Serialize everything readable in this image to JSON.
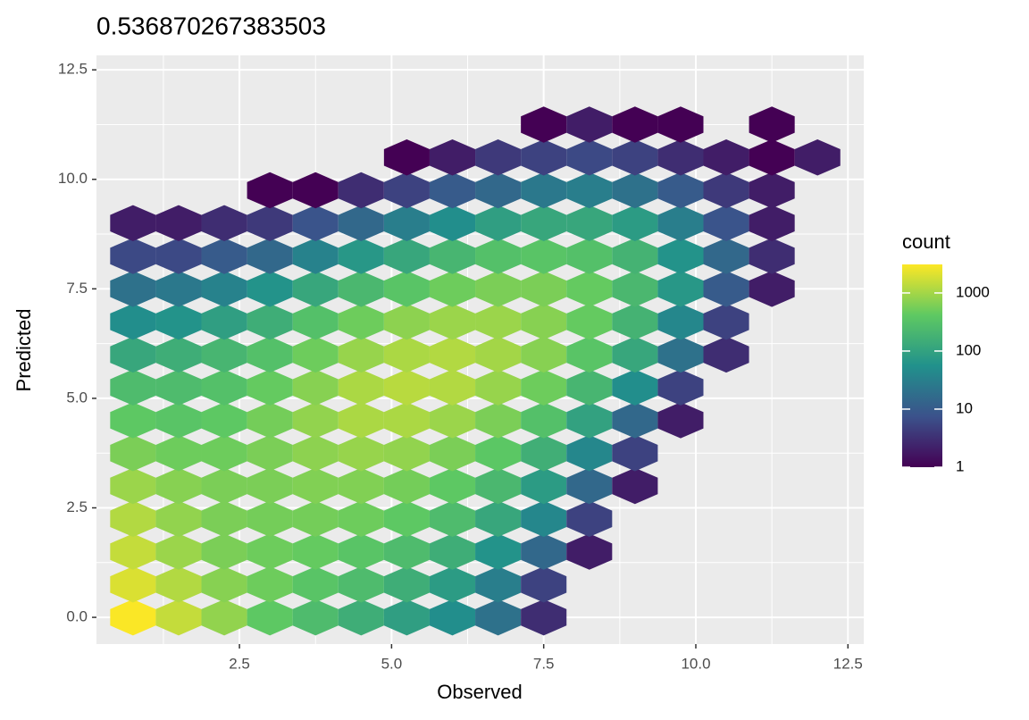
{
  "chart_data": {
    "type": "hexbin",
    "title": "0.536870267383503",
    "x_label": "Observed",
    "y_label": "Predicted",
    "legend_title": "count",
    "x": [
      0.75,
      1.5,
      2.25,
      3.0,
      3.75,
      4.5,
      5.25,
      6.0,
      6.75,
      7.5,
      8.25,
      9.0,
      9.75,
      10.5,
      11.25,
      12.0
    ],
    "y": [
      0,
      0.75,
      1.5,
      2.25,
      3.0,
      3.75,
      4.5,
      5.25,
      6.0,
      6.75,
      7.5,
      8.25,
      9.0,
      9.75,
      10.5,
      11.25
    ],
    "values": [
      [
        3000,
        1500,
        800,
        400,
        250,
        150,
        90,
        50,
        20,
        3,
        null,
        null,
        null,
        null,
        null,
        null
      ],
      [
        2000,
        1200,
        700,
        500,
        350,
        250,
        150,
        80,
        30,
        5,
        null,
        null,
        null,
        null,
        null,
        null
      ],
      [
        1500,
        900,
        600,
        500,
        450,
        350,
        250,
        150,
        60,
        15,
        2,
        null,
        null,
        null,
        null,
        null
      ],
      [
        1200,
        800,
        600,
        550,
        550,
        500,
        400,
        250,
        120,
        40,
        5,
        null,
        null,
        null,
        null,
        null
      ],
      [
        900,
        700,
        600,
        600,
        650,
        650,
        550,
        400,
        220,
        80,
        15,
        2,
        null,
        null,
        null,
        null
      ],
      [
        600,
        500,
        500,
        600,
        750,
        850,
        800,
        600,
        380,
        160,
        40,
        5,
        null,
        null,
        null,
        null
      ],
      [
        400,
        350,
        400,
        550,
        800,
        1100,
        1100,
        900,
        600,
        300,
        100,
        15,
        2,
        null,
        null,
        null
      ],
      [
        250,
        250,
        300,
        450,
        700,
        1100,
        1300,
        1200,
        850,
        500,
        200,
        50,
        5,
        null,
        null,
        null
      ],
      [
        120,
        150,
        200,
        300,
        500,
        850,
        1100,
        1200,
        1000,
        700,
        350,
        120,
        20,
        3,
        null,
        null
      ],
      [
        50,
        60,
        90,
        150,
        300,
        500,
        750,
        900,
        900,
        700,
        450,
        180,
        40,
        5,
        null,
        null
      ],
      [
        20,
        25,
        35,
        60,
        120,
        220,
        350,
        500,
        600,
        600,
        450,
        220,
        70,
        10,
        2,
        null
      ],
      [
        6,
        6,
        10,
        15,
        35,
        70,
        120,
        200,
        300,
        350,
        300,
        180,
        60,
        15,
        3,
        null
      ],
      [
        2,
        2,
        3,
        4,
        8,
        15,
        30,
        50,
        90,
        120,
        120,
        80,
        30,
        8,
        2,
        null
      ],
      [
        null,
        null,
        null,
        1,
        1,
        3,
        5,
        10,
        15,
        25,
        30,
        20,
        10,
        4,
        2,
        null
      ],
      [
        null,
        null,
        null,
        null,
        null,
        null,
        1,
        2,
        4,
        5,
        6,
        5,
        3,
        2,
        1,
        2
      ],
      [
        null,
        null,
        null,
        null,
        null,
        null,
        null,
        null,
        null,
        1,
        2,
        1,
        1,
        null,
        1,
        null
      ]
    ],
    "xlim": [
      0.15,
      12.76
    ],
    "ylim": [
      -0.61,
      12.83
    ],
    "xticks": [
      {
        "value": 2.5,
        "label": "2.5"
      },
      {
        "value": 5,
        "label": "5.0"
      },
      {
        "value": 7.5,
        "label": "7.5"
      },
      {
        "value": 10,
        "label": "10.0"
      },
      {
        "value": 12.5,
        "label": "12.5"
      }
    ],
    "yticks": [
      {
        "value": 0,
        "label": "0.0"
      },
      {
        "value": 2.5,
        "label": "2.5"
      },
      {
        "value": 5,
        "label": "5.0"
      },
      {
        "value": 7.5,
        "label": "7.5"
      },
      {
        "value": 10,
        "label": "10.0"
      },
      {
        "value": 12.5,
        "label": "12.5"
      }
    ],
    "color_scale": "log",
    "colorlim": [
      1,
      3100
    ],
    "legend_ticks": [
      1,
      10,
      100,
      1000
    ],
    "colormap": [
      "#440154",
      "#3b528b",
      "#21918c",
      "#5ec962",
      "#fde725"
    ],
    "grid": true
  }
}
